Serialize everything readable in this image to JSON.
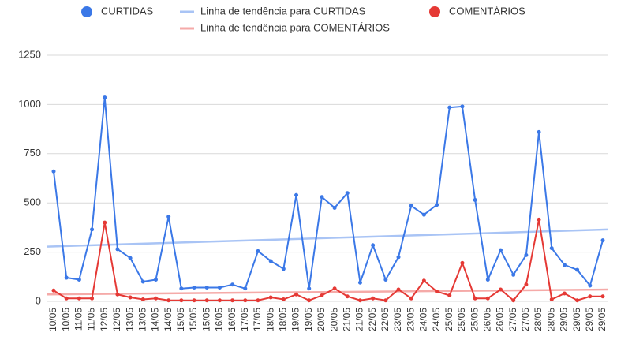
{
  "chart_data": {
    "type": "line",
    "categories": [
      "10/05",
      "10/05",
      "11/05",
      "11/05",
      "12/05",
      "12/05",
      "13/05",
      "13/05",
      "14/05",
      "14/05",
      "15/05",
      "15/05",
      "15/05",
      "16/05",
      "16/05",
      "17/05",
      "17/05",
      "18/05",
      "18/05",
      "19/05",
      "19/05",
      "20/05",
      "20/05",
      "21/05",
      "21/05",
      "22/05",
      "22/05",
      "23/05",
      "23/05",
      "24/05",
      "24/05",
      "25/05",
      "25/05",
      "25/05",
      "26/05",
      "26/05",
      "27/05",
      "27/05",
      "28/05",
      "28/05",
      "29/05",
      "29/05",
      "29/05",
      "29/05"
    ],
    "series": [
      {
        "name": "CURTIDAS",
        "color": "#3b78e7",
        "values": [
          660,
          120,
          110,
          365,
          1035,
          265,
          220,
          100,
          110,
          430,
          65,
          70,
          70,
          70,
          85,
          65,
          255,
          205,
          165,
          540,
          65,
          530,
          475,
          550,
          95,
          285,
          110,
          225,
          485,
          440,
          490,
          985,
          990,
          515,
          110,
          260,
          135,
          235,
          860,
          270,
          185,
          160,
          80,
          310
        ]
      },
      {
        "name": "COMENTÁRIOS",
        "color": "#e53935",
        "values": [
          55,
          15,
          15,
          15,
          400,
          35,
          20,
          10,
          15,
          5,
          5,
          5,
          5,
          5,
          5,
          5,
          5,
          20,
          10,
          35,
          5,
          30,
          65,
          25,
          5,
          15,
          5,
          60,
          15,
          105,
          50,
          30,
          195,
          15,
          15,
          60,
          5,
          85,
          415,
          10,
          40,
          5,
          25,
          25
        ]
      }
    ],
    "trendlines": [
      {
        "name": "Linha de tendência para CURTIDAS",
        "color": "#a9c4f5",
        "values": [
          278,
          365
        ]
      },
      {
        "name": "Linha de tendência para COMENTÁRIOS",
        "color": "#f5aaa8",
        "values": [
          35,
          60
        ]
      }
    ],
    "ylim": [
      0,
      1250
    ],
    "yticks": [
      0,
      250,
      500,
      750,
      1000,
      1250
    ],
    "grid": true
  }
}
